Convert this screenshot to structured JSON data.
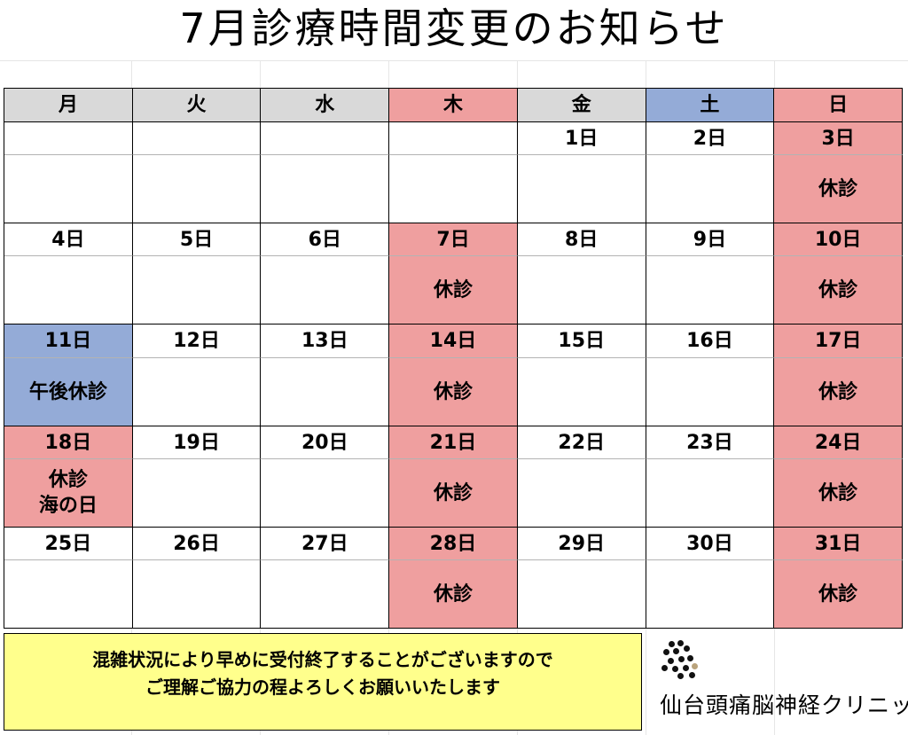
{
  "title": "7月診療時間変更のお知らせ",
  "colors": {
    "closed_pink": "#ef9f9f",
    "afternoon_closed_blue": "#94abd7",
    "header_gray": "#d9d9d9",
    "notice_yellow": "#ffff8c"
  },
  "weekdays": [
    {
      "label": "月",
      "color": "gray"
    },
    {
      "label": "火",
      "color": "gray"
    },
    {
      "label": "水",
      "color": "gray"
    },
    {
      "label": "木",
      "color": "pink"
    },
    {
      "label": "金",
      "color": "gray"
    },
    {
      "label": "土",
      "color": "blue"
    },
    {
      "label": "日",
      "color": "pink"
    }
  ],
  "weeks": [
    [
      {
        "date": "",
        "status": "",
        "color": ""
      },
      {
        "date": "",
        "status": "",
        "color": ""
      },
      {
        "date": "",
        "status": "",
        "color": ""
      },
      {
        "date": "",
        "status": "",
        "color": ""
      },
      {
        "date": "1日",
        "status": "",
        "color": ""
      },
      {
        "date": "2日",
        "status": "",
        "color": ""
      },
      {
        "date": "3日",
        "status": "休診",
        "color": "pink"
      }
    ],
    [
      {
        "date": "4日",
        "status": "",
        "color": ""
      },
      {
        "date": "5日",
        "status": "",
        "color": ""
      },
      {
        "date": "6日",
        "status": "",
        "color": ""
      },
      {
        "date": "7日",
        "status": "休診",
        "color": "pink"
      },
      {
        "date": "8日",
        "status": "",
        "color": ""
      },
      {
        "date": "9日",
        "status": "",
        "color": ""
      },
      {
        "date": "10日",
        "status": "休診",
        "color": "pink"
      }
    ],
    [
      {
        "date": "11日",
        "status": "午後休診",
        "color": "blue"
      },
      {
        "date": "12日",
        "status": "",
        "color": ""
      },
      {
        "date": "13日",
        "status": "",
        "color": ""
      },
      {
        "date": "14日",
        "status": "休診",
        "color": "pink"
      },
      {
        "date": "15日",
        "status": "",
        "color": ""
      },
      {
        "date": "16日",
        "status": "",
        "color": ""
      },
      {
        "date": "17日",
        "status": "休診",
        "color": "pink"
      }
    ],
    [
      {
        "date": "18日",
        "status": "休診\n海の日",
        "color": "pink"
      },
      {
        "date": "19日",
        "status": "",
        "color": ""
      },
      {
        "date": "20日",
        "status": "",
        "color": ""
      },
      {
        "date": "21日",
        "status": "休診",
        "color": "pink"
      },
      {
        "date": "22日",
        "status": "",
        "color": ""
      },
      {
        "date": "23日",
        "status": "",
        "color": ""
      },
      {
        "date": "24日",
        "status": "休診",
        "color": "pink"
      }
    ],
    [
      {
        "date": "25日",
        "status": "",
        "color": ""
      },
      {
        "date": "26日",
        "status": "",
        "color": ""
      },
      {
        "date": "27日",
        "status": "",
        "color": ""
      },
      {
        "date": "28日",
        "status": "休診",
        "color": "pink"
      },
      {
        "date": "29日",
        "status": "",
        "color": ""
      },
      {
        "date": "30日",
        "status": "",
        "color": ""
      },
      {
        "date": "31日",
        "status": "休診",
        "color": "pink"
      }
    ]
  ],
  "notice": {
    "line1": "混雑状況により早めに受付終了することがございますので",
    "line2": "ご理解ご協力の程よろしくお願いいたします"
  },
  "clinic": {
    "name": "仙台頭痛脳神経クリニック",
    "logo_icon": "dot-cluster-logo-icon"
  }
}
